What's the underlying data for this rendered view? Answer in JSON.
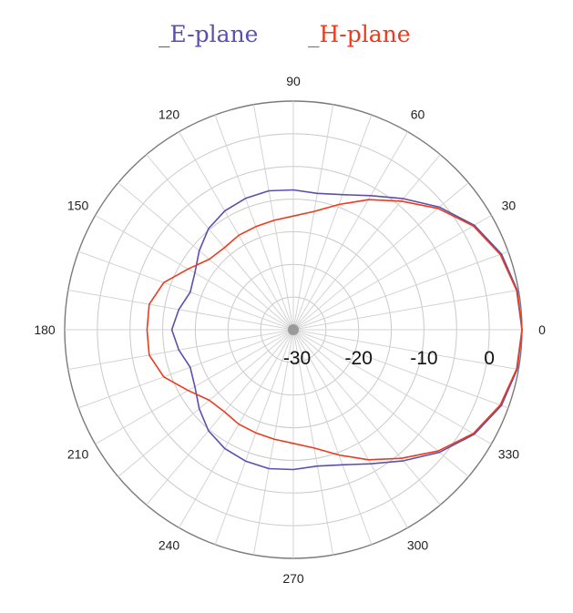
{
  "legend": {
    "items": [
      {
        "label": "_E-plane",
        "color": "#5a4fb0"
      },
      {
        "label": "_H-plane",
        "color": "#ee3a1c"
      }
    ]
  },
  "chart_data": {
    "type": "line",
    "subtype": "polar",
    "title": "",
    "angle_unit": "degrees",
    "angle_ticks": [
      0,
      30,
      60,
      90,
      120,
      150,
      180,
      210,
      240,
      270,
      300,
      330
    ],
    "angle_tick_labels": [
      "0",
      "30",
      "60",
      "90",
      "120",
      "150",
      "180",
      "210",
      "240",
      "270",
      "300",
      "330"
    ],
    "radial_range_db": [
      -30,
      5
    ],
    "radial_tick_labels": [
      "-30",
      "-20",
      "-10",
      "0"
    ],
    "radial_tick_values": [
      -30,
      -20,
      -10,
      0
    ],
    "grid": true,
    "angular_grid_step_deg": 10,
    "radial_grid_step_db": 5,
    "series": [
      {
        "name": "_E-plane",
        "color": "#5a4fb0",
        "angles": [
          0,
          10,
          20,
          30,
          40,
          50,
          60,
          70,
          80,
          90,
          100,
          110,
          120,
          130,
          140,
          150,
          160,
          170,
          180,
          190,
          200,
          210,
          220,
          230,
          240,
          250,
          260,
          270,
          280,
          290,
          300,
          310,
          320,
          330,
          340,
          350,
          360
        ],
        "values": [
          5.0,
          4.8,
          3.9,
          2.0,
          -0.8,
          -3.8,
          -6.3,
          -8.0,
          -8.8,
          -8.6,
          -8.4,
          -8.6,
          -9.0,
          -9.8,
          -11.2,
          -12.6,
          -13.2,
          -12.2,
          -11.4,
          -12.2,
          -13.2,
          -12.6,
          -11.2,
          -9.8,
          -9.0,
          -8.6,
          -8.4,
          -8.6,
          -8.8,
          -8.0,
          -6.3,
          -3.8,
          -0.8,
          2.0,
          3.9,
          4.8,
          5.0
        ]
      },
      {
        "name": "_H-plane",
        "color": "#ee3a1c",
        "angles": [
          0,
          10,
          20,
          30,
          40,
          50,
          60,
          70,
          80,
          90,
          100,
          110,
          120,
          130,
          140,
          150,
          160,
          170,
          180,
          190,
          200,
          210,
          220,
          230,
          240,
          250,
          260,
          270,
          280,
          290,
          300,
          310,
          320,
          330,
          340,
          350,
          360
        ],
        "values": [
          5.0,
          4.7,
          3.7,
          1.8,
          -1.1,
          -4.3,
          -7.0,
          -9.6,
          -11.6,
          -12.6,
          -13.0,
          -13.2,
          -13.3,
          -13.6,
          -13.2,
          -11.4,
          -8.9,
          -7.6,
          -7.6,
          -7.6,
          -8.9,
          -11.4,
          -13.2,
          -13.6,
          -13.3,
          -13.2,
          -13.0,
          -12.6,
          -11.6,
          -9.6,
          -7.0,
          -4.3,
          -1.1,
          1.8,
          3.7,
          4.7,
          5.0
        ]
      }
    ]
  }
}
